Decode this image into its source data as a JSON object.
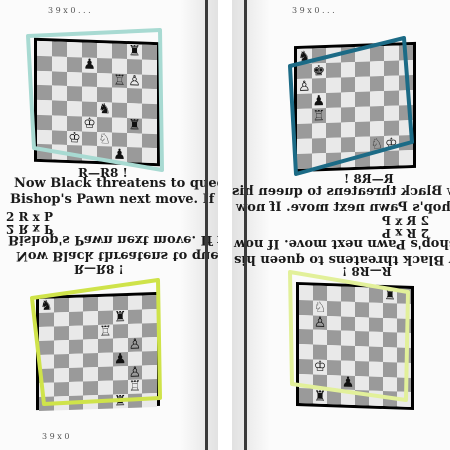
{
  "page": {
    "top_left_fragment": "3 9 x 0  .  .  .",
    "top_right_fragment": "3 9 x 0  .  .  .",
    "move_rr": "R—R8 !",
    "now_black_text": "Now Black threatens to queen his",
    "bishop_text": "Bishop's Pawn next move. If now",
    "move_rxp": "2 R x P",
    "bottom_fragment": "3 9 x 0"
  },
  "highlights": {
    "top_left_color": "#a8dad2",
    "top_right_color": "#1c6b86",
    "bottom_left_color": "#cfe34a",
    "bottom_right_color": "#e2f09a"
  },
  "pieces": {
    "rook": "♜",
    "king": "♚",
    "queen": "♛",
    "knight": "♞",
    "bishop": "♝",
    "pawn": "♟",
    "white_rook": "♖",
    "white_king": "♔",
    "white_knight": "♘",
    "white_pawn": "♙"
  }
}
